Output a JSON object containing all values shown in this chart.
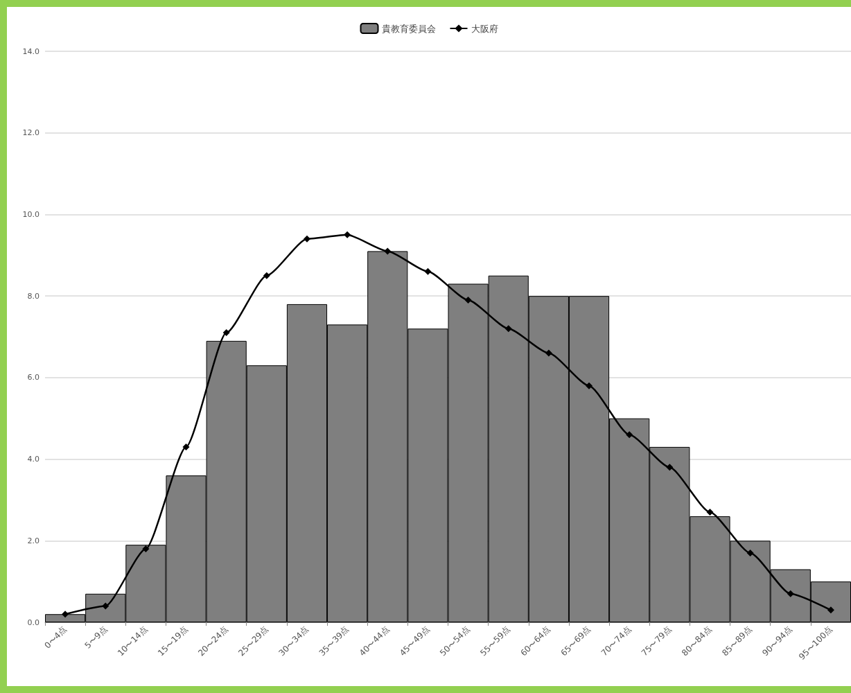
{
  "chart_data": {
    "type": "bar",
    "categories": [
      "0〜4点",
      "5〜9点",
      "10〜14点",
      "15〜19点",
      "20〜24点",
      "25〜29点",
      "30〜34点",
      "35〜39点",
      "40〜44点",
      "45〜49点",
      "50〜54点",
      "55〜59点",
      "60〜64点",
      "65〜69点",
      "70〜74点",
      "75〜79点",
      "80〜84点",
      "85〜89点",
      "90〜94点",
      "95〜100点"
    ],
    "series": [
      {
        "name": "貴教育委員会",
        "color": "#7f7f7f",
        "values": [
          0.2,
          0.7,
          1.9,
          3.6,
          6.9,
          6.3,
          7.8,
          7.3,
          9.1,
          7.2,
          8.3,
          8.5,
          8.0,
          8.0,
          5.0,
          4.3,
          2.6,
          2.0,
          1.3,
          1.0
        ]
      },
      {
        "name": "大阪府",
        "type": "line",
        "color": "#000000",
        "marker": "diamond",
        "values": [
          0.2,
          0.4,
          1.8,
          4.3,
          7.1,
          8.5,
          9.4,
          9.5,
          9.1,
          8.6,
          7.9,
          7.2,
          6.6,
          5.8,
          4.6,
          3.8,
          2.7,
          1.7,
          0.7,
          0.3
        ]
      }
    ],
    "ylim": [
      0,
      14
    ],
    "yticks": [
      {
        "value": 0,
        "label": "0.0"
      },
      {
        "value": 2,
        "label": "2.0"
      },
      {
        "value": 4,
        "label": "4.0"
      },
      {
        "value": 6,
        "label": "6.0"
      },
      {
        "value": 8,
        "label": "8.0"
      },
      {
        "value": 10,
        "label": "10.0"
      },
      {
        "value": 12,
        "label": "12.0"
      },
      {
        "value": 14,
        "label": "14.0"
      }
    ],
    "grid": "y",
    "legend": "top"
  }
}
